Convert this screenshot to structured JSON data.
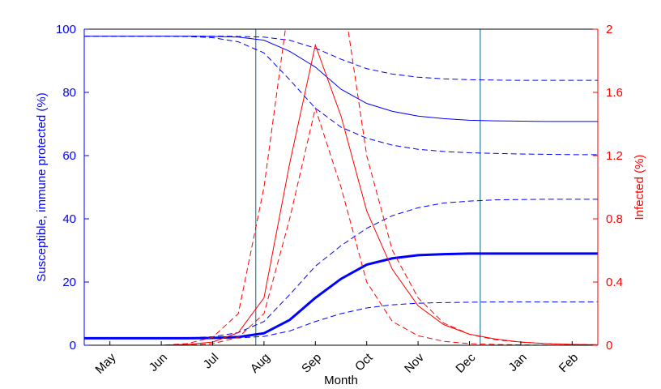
{
  "chart_data": {
    "type": "line",
    "xlabel": "Month",
    "ylabel": "Susceptible, immune protected (%)",
    "y2label": "Infected (%)",
    "x": [
      0,
      0.5,
      1,
      1.5,
      2,
      2.5,
      3,
      3.5,
      4,
      4.5,
      5,
      5.5,
      6,
      6.5,
      7,
      7.5,
      8,
      8.5,
      9,
      9.5,
      10
    ],
    "xlim": [
      0,
      10
    ],
    "xticks": [
      {
        "value": 0.5,
        "label": "May"
      },
      {
        "value": 1.5,
        "label": "Jun"
      },
      {
        "value": 2.5,
        "label": "Jul"
      },
      {
        "value": 3.5,
        "label": "Aug"
      },
      {
        "value": 4.5,
        "label": "Sep"
      },
      {
        "value": 5.5,
        "label": "Oct"
      },
      {
        "value": 6.5,
        "label": "Nov"
      },
      {
        "value": 7.5,
        "label": "Dec"
      },
      {
        "value": 8.5,
        "label": "Jan"
      },
      {
        "value": 9.5,
        "label": "Feb"
      }
    ],
    "ylim": [
      0,
      100
    ],
    "yticks": [
      0,
      20,
      40,
      60,
      80,
      100
    ],
    "ycolor": "#0000ff",
    "y2lim": [
      0,
      2
    ],
    "y2ticks": [
      0,
      0.4,
      0.8,
      1.2,
      1.6,
      2
    ],
    "y2color": "#ff0000",
    "vlines": [
      3.34,
      7.71
    ],
    "vline_color": "#2b7fa0",
    "series": [
      {
        "color": "#0000ff",
        "width": 3,
        "dash": false,
        "values": [
          2.2,
          2.2,
          2.2,
          2.2,
          2.2,
          2.3,
          2.6,
          3.8,
          8,
          15,
          21,
          25.5,
          27.5,
          28.5,
          28.8,
          29,
          29,
          29,
          29,
          29,
          29
        ]
      },
      {
        "color": "#0000ff",
        "width": 1,
        "dash": false,
        "values": [
          97.8,
          97.8,
          97.8,
          97.8,
          97.8,
          97.7,
          97.5,
          96.5,
          93,
          88,
          81,
          76.5,
          74,
          72.5,
          71.7,
          71.2,
          71,
          70.9,
          70.8,
          70.8,
          70.8
        ]
      },
      {
        "color": "#0000ff",
        "width": 1,
        "dash": true,
        "values": [
          97.8,
          97.8,
          97.8,
          97.8,
          97.8,
          97.8,
          97.7,
          97.5,
          96.5,
          94,
          90.5,
          87.5,
          85.8,
          84.8,
          84.3,
          84,
          83.9,
          83.8,
          83.8,
          83.8,
          83.8
        ]
      },
      {
        "color": "#0000ff",
        "width": 1,
        "dash": true,
        "values": [
          97.8,
          97.8,
          97.8,
          97.8,
          97.7,
          97.3,
          96,
          92.5,
          84,
          75,
          69,
          65.5,
          63.3,
          62,
          61.3,
          60.9,
          60.7,
          60.5,
          60.4,
          60.3,
          60.3
        ]
      },
      {
        "color": "#0000ff",
        "width": 1,
        "dash": true,
        "values": [
          2.2,
          2.2,
          2.2,
          2.2,
          2.3,
          2.7,
          4,
          7.5,
          16,
          25,
          31.5,
          37,
          41,
          43.5,
          45,
          45.6,
          46,
          46.1,
          46.2,
          46.2,
          46.2
        ]
      },
      {
        "color": "#0000ff",
        "width": 1,
        "dash": true,
        "values": [
          2.2,
          2.2,
          2.2,
          2.2,
          2.2,
          2.2,
          2.3,
          2.8,
          4.5,
          7.5,
          10,
          11.8,
          12.8,
          13.3,
          13.5,
          13.6,
          13.7,
          13.7,
          13.7,
          13.7,
          13.7
        ]
      },
      {
        "color": "#ff0000",
        "width": 1,
        "dash": false,
        "axis": "y2",
        "values": [
          0,
          0,
          0,
          0,
          0.005,
          0.02,
          0.08,
          0.3,
          1.15,
          1.9,
          1.45,
          0.85,
          0.48,
          0.25,
          0.13,
          0.07,
          0.04,
          0.02,
          0.01,
          0.005,
          0.003
        ]
      },
      {
        "color": "#ff0000",
        "width": 1,
        "dash": true,
        "axis": "y2",
        "values": [
          0,
          0,
          0,
          0,
          0.01,
          0.05,
          0.2,
          1,
          2.2,
          2.7,
          2.3,
          1.2,
          0.6,
          0.3,
          0.14,
          0.07,
          0.035,
          0.02,
          0.01,
          0.005,
          0.003
        ]
      },
      {
        "color": "#ff0000",
        "width": 1,
        "dash": true,
        "axis": "y2",
        "values": [
          0,
          0,
          0,
          0,
          0,
          0.01,
          0.05,
          0.2,
          0.8,
          1.5,
          1,
          0.4,
          0.15,
          0.06,
          0.025,
          0.01,
          0.005,
          0.002,
          0.001,
          0,
          0
        ]
      }
    ]
  }
}
